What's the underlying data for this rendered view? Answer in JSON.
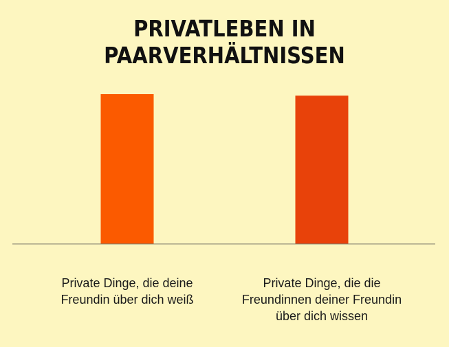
{
  "chart_data": {
    "type": "bar",
    "title": "PRIVATLEBEN IN PAARVERHÄLTNISSEN",
    "categories": [
      "Private Dinge, die deine\nFreundin über dich weiß",
      "Private Dinge, die die\nFreundinnen deiner Freundin\nüber dich wissen"
    ],
    "values": [
      100,
      99
    ],
    "colors": [
      "#fb5a00",
      "#e8420a"
    ],
    "xlabel": "",
    "ylabel": "",
    "ylim": [
      0,
      100
    ],
    "grid": false,
    "legend": "none",
    "axis_color": "#7a7a6a"
  }
}
